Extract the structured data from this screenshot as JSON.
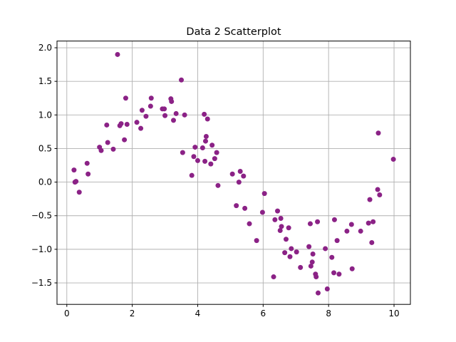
{
  "chart_data": {
    "type": "scatter",
    "title": "Data 2 Scatterplot",
    "xlabel": "",
    "ylabel": "",
    "xlim": [
      -0.3,
      10.5
    ],
    "ylim": [
      -1.82,
      2.1
    ],
    "xticks": [
      0,
      2,
      4,
      6,
      8,
      10
    ],
    "yticks": [
      -1.5,
      -1.0,
      -0.5,
      0.0,
      0.5,
      1.0,
      1.5,
      2.0
    ],
    "xtick_labels": [
      "0",
      "2",
      "4",
      "6",
      "8",
      "10"
    ],
    "ytick_labels": [
      "−1.5",
      "−1.0",
      "−0.5",
      "0.0",
      "0.5",
      "1.0",
      "1.5",
      "2.0"
    ],
    "grid": true,
    "color": "#8b2286",
    "points": [
      {
        "x": 0.22,
        "y": 0.18
      },
      {
        "x": 0.25,
        "y": 0.0
      },
      {
        "x": 0.28,
        "y": 0.01
      },
      {
        "x": 0.38,
        "y": -0.15
      },
      {
        "x": 0.62,
        "y": 0.28
      },
      {
        "x": 0.65,
        "y": 0.12
      },
      {
        "x": 1.0,
        "y": 0.52
      },
      {
        "x": 1.05,
        "y": 0.47
      },
      {
        "x": 1.22,
        "y": 0.85
      },
      {
        "x": 1.25,
        "y": 0.59
      },
      {
        "x": 1.42,
        "y": 0.49
      },
      {
        "x": 1.55,
        "y": 1.9
      },
      {
        "x": 1.62,
        "y": 0.84
      },
      {
        "x": 1.66,
        "y": 0.87
      },
      {
        "x": 1.76,
        "y": 0.63
      },
      {
        "x": 1.8,
        "y": 1.25
      },
      {
        "x": 1.84,
        "y": 0.86
      },
      {
        "x": 2.14,
        "y": 0.89
      },
      {
        "x": 2.26,
        "y": 0.8
      },
      {
        "x": 2.3,
        "y": 1.07
      },
      {
        "x": 2.42,
        "y": 0.98
      },
      {
        "x": 2.56,
        "y": 1.13
      },
      {
        "x": 2.58,
        "y": 1.25
      },
      {
        "x": 2.92,
        "y": 1.09
      },
      {
        "x": 2.98,
        "y": 1.09
      },
      {
        "x": 3.0,
        "y": 0.99
      },
      {
        "x": 3.18,
        "y": 1.24
      },
      {
        "x": 3.2,
        "y": 1.2
      },
      {
        "x": 3.26,
        "y": 0.92
      },
      {
        "x": 3.34,
        "y": 1.02
      },
      {
        "x": 3.5,
        "y": 1.52
      },
      {
        "x": 3.54,
        "y": 0.44
      },
      {
        "x": 3.6,
        "y": 1.0
      },
      {
        "x": 3.82,
        "y": 0.1
      },
      {
        "x": 3.88,
        "y": 0.38
      },
      {
        "x": 3.92,
        "y": 0.52
      },
      {
        "x": 4.0,
        "y": 0.32
      },
      {
        "x": 4.15,
        "y": 0.51
      },
      {
        "x": 4.2,
        "y": 1.01
      },
      {
        "x": 4.22,
        "y": 0.31
      },
      {
        "x": 4.24,
        "y": 0.61
      },
      {
        "x": 4.26,
        "y": 0.68
      },
      {
        "x": 4.3,
        "y": 0.94
      },
      {
        "x": 4.4,
        "y": 0.27
      },
      {
        "x": 4.44,
        "y": 0.55
      },
      {
        "x": 4.52,
        "y": 0.35
      },
      {
        "x": 4.58,
        "y": 0.44
      },
      {
        "x": 4.62,
        "y": -0.05
      },
      {
        "x": 5.06,
        "y": 0.12
      },
      {
        "x": 5.18,
        "y": -0.35
      },
      {
        "x": 5.26,
        "y": 0.0
      },
      {
        "x": 5.3,
        "y": 0.16
      },
      {
        "x": 5.4,
        "y": 0.09
      },
      {
        "x": 5.44,
        "y": -0.39
      },
      {
        "x": 5.58,
        "y": -0.62
      },
      {
        "x": 5.8,
        "y": -0.87
      },
      {
        "x": 5.98,
        "y": -0.45
      },
      {
        "x": 6.04,
        "y": -0.17
      },
      {
        "x": 6.32,
        "y": -1.41
      },
      {
        "x": 6.36,
        "y": -0.56
      },
      {
        "x": 6.44,
        "y": -0.43
      },
      {
        "x": 6.52,
        "y": -0.72
      },
      {
        "x": 6.54,
        "y": -0.54
      },
      {
        "x": 6.56,
        "y": -0.66
      },
      {
        "x": 6.66,
        "y": -1.05
      },
      {
        "x": 6.7,
        "y": -0.85
      },
      {
        "x": 6.78,
        "y": -0.68
      },
      {
        "x": 6.82,
        "y": -1.11
      },
      {
        "x": 6.86,
        "y": -0.99
      },
      {
        "x": 7.02,
        "y": -1.04
      },
      {
        "x": 7.14,
        "y": -1.27
      },
      {
        "x": 7.4,
        "y": -0.96
      },
      {
        "x": 7.44,
        "y": -0.62
      },
      {
        "x": 7.46,
        "y": -1.25
      },
      {
        "x": 7.5,
        "y": -1.19
      },
      {
        "x": 7.52,
        "y": -1.07
      },
      {
        "x": 7.6,
        "y": -1.37
      },
      {
        "x": 7.62,
        "y": -1.41
      },
      {
        "x": 7.66,
        "y": -0.59
      },
      {
        "x": 7.68,
        "y": -1.65
      },
      {
        "x": 7.9,
        "y": -0.99
      },
      {
        "x": 7.96,
        "y": -1.59
      },
      {
        "x": 8.1,
        "y": -1.12
      },
      {
        "x": 8.16,
        "y": -1.35
      },
      {
        "x": 8.18,
        "y": -0.56
      },
      {
        "x": 8.26,
        "y": -0.87
      },
      {
        "x": 8.32,
        "y": -1.37
      },
      {
        "x": 8.56,
        "y": -0.73
      },
      {
        "x": 8.7,
        "y": -0.63
      },
      {
        "x": 8.72,
        "y": -1.29
      },
      {
        "x": 8.98,
        "y": -0.73
      },
      {
        "x": 9.22,
        "y": -0.61
      },
      {
        "x": 9.26,
        "y": -0.26
      },
      {
        "x": 9.32,
        "y": -0.9
      },
      {
        "x": 9.36,
        "y": -0.59
      },
      {
        "x": 9.5,
        "y": -0.11
      },
      {
        "x": 9.52,
        "y": 0.73
      },
      {
        "x": 9.56,
        "y": -0.19
      },
      {
        "x": 9.98,
        "y": 0.34
      }
    ]
  }
}
